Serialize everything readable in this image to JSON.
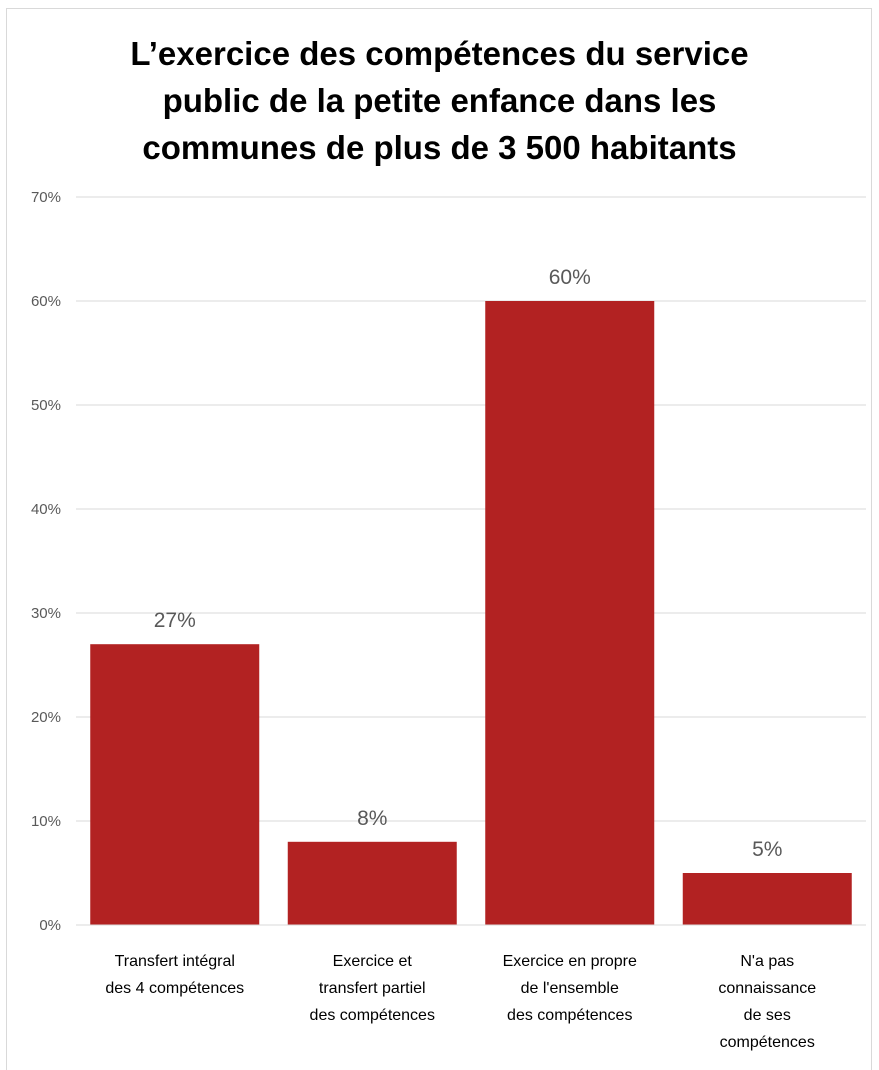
{
  "chart_data": {
    "type": "bar",
    "title_lines": [
      "L’exercice des compétences du service",
      "public de la petite enfance dans les",
      "communes de plus de 3 500 habitants"
    ],
    "categories": [
      [
        "Transfert intégral",
        "des 4 compétences"
      ],
      [
        "Exercice et",
        "transfert partiel",
        "des compétences"
      ],
      [
        "Exercice en propre",
        "de l'ensemble",
        "des compétences"
      ],
      [
        "N'a pas",
        "connaissance",
        "de ses",
        "compétences"
      ]
    ],
    "values": [
      27,
      8,
      60,
      5
    ],
    "data_labels": [
      "27%",
      "8%",
      "60%",
      "5%"
    ],
    "y_ticks": [
      0,
      10,
      20,
      30,
      40,
      50,
      60,
      70
    ],
    "y_tick_labels": [
      "0%",
      "10%",
      "20%",
      "30%",
      "40%",
      "50%",
      "60%",
      "70%"
    ],
    "ylim": [
      0,
      70
    ],
    "grid": true,
    "legend": "none",
    "bar_color": "#b22222",
    "grid_color": "#d9d9d9",
    "axis_color": "#d9d9d9"
  }
}
